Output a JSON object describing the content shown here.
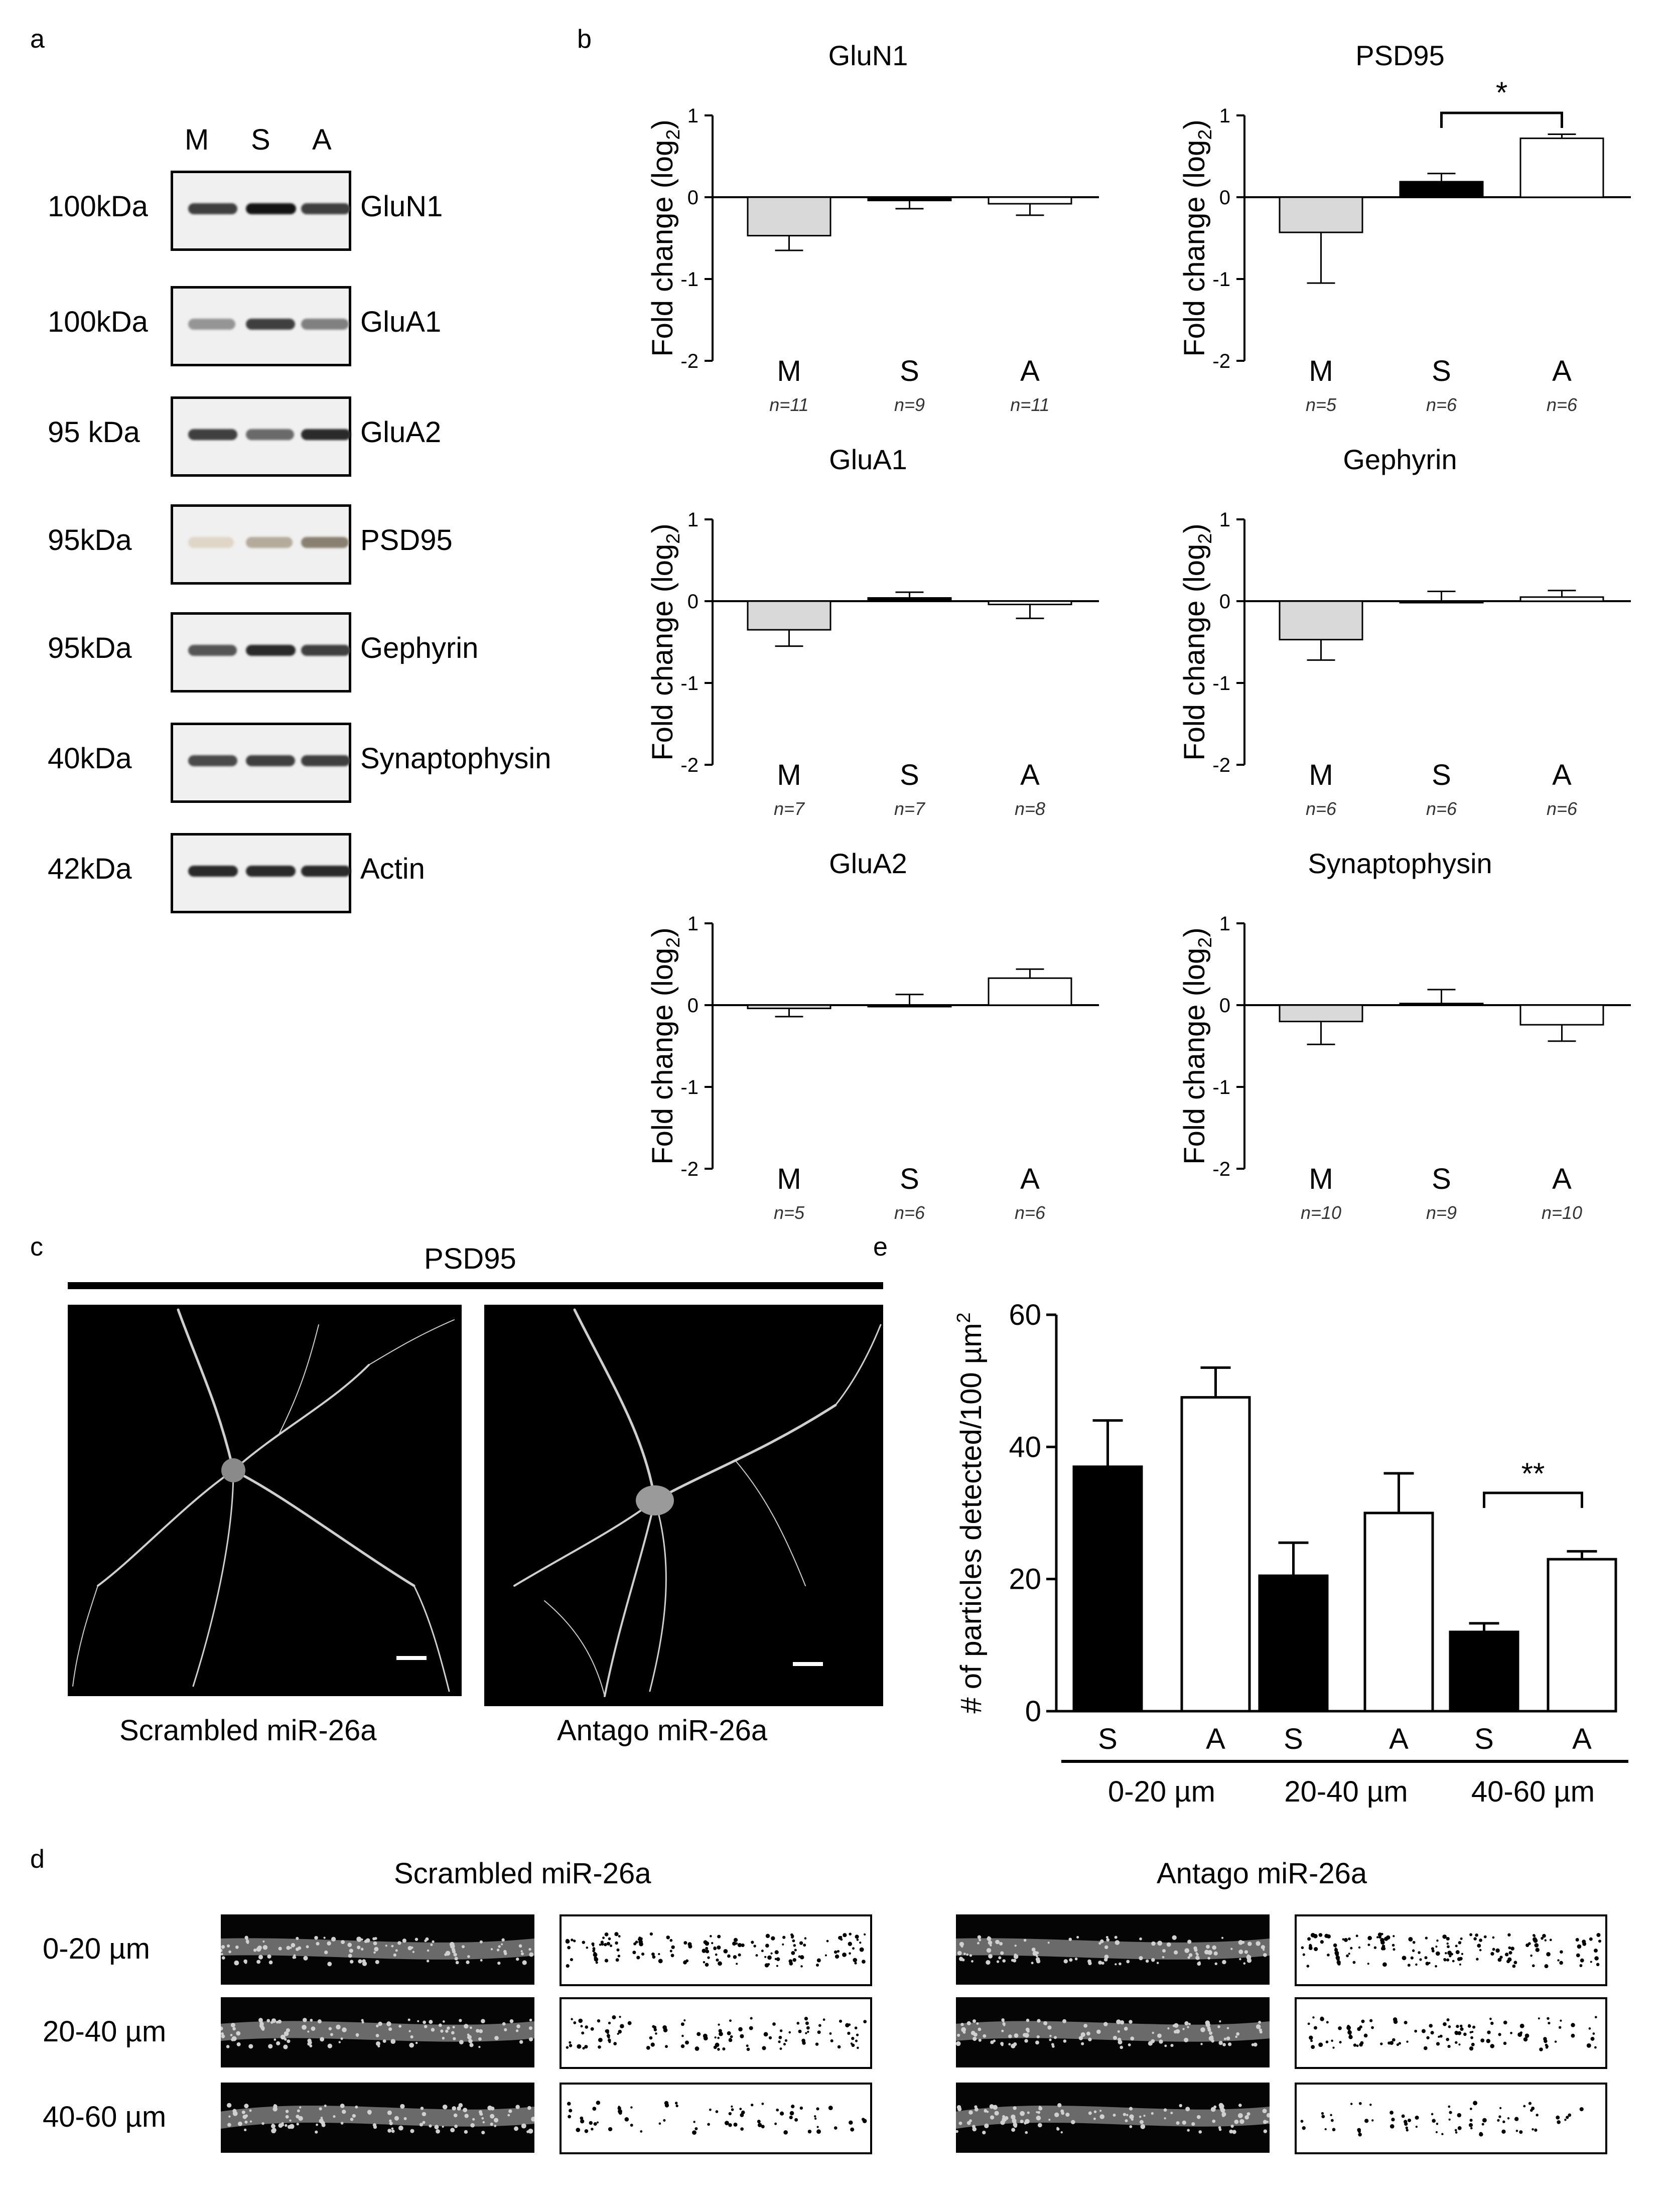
{
  "panels": {
    "a": "a",
    "b": "b",
    "c": "c",
    "d": "d",
    "e": "e"
  },
  "panel_a": {
    "lanes": [
      "M",
      "S",
      "A"
    ],
    "blots": [
      {
        "mw": "100kDa",
        "protein": "GluN1",
        "bands": [
          0.8,
          1.0,
          0.8
        ]
      },
      {
        "mw": "100kDa",
        "protein": "GluA1",
        "bands": [
          0.4,
          0.8,
          0.5
        ]
      },
      {
        "mw": "95 kDa",
        "protein": "GluA2",
        "bands": [
          0.8,
          0.6,
          0.9
        ]
      },
      {
        "mw": "95kDa",
        "protein": "PSD95",
        "bands": [
          0.05,
          0.25,
          0.45
        ]
      },
      {
        "mw": "95kDa",
        "protein": "Gephyrin",
        "bands": [
          0.7,
          0.9,
          0.8
        ]
      },
      {
        "mw": "40kDa",
        "protein": "Synaptophysin",
        "bands": [
          0.75,
          0.8,
          0.8
        ]
      },
      {
        "mw": "42kDa",
        "protein": "Actin",
        "bands": [
          0.9,
          0.9,
          0.9
        ]
      }
    ]
  },
  "panel_b": {
    "ylabel": "Fold change (log",
    "ylabel_sub": "2",
    "ylabel_end": ")",
    "yticks": [
      "1",
      "0",
      "-1",
      "-2"
    ],
    "categories": [
      "M",
      "S",
      "A"
    ]
  },
  "chart_data": [
    {
      "type": "bar",
      "title": "GluN1",
      "categories": [
        "M",
        "S",
        "A"
      ],
      "values": [
        -0.47,
        -0.04,
        -0.08
      ],
      "errors": [
        0.18,
        0.1,
        0.14
      ],
      "n": [
        "n=11",
        "n=9",
        "n=11"
      ],
      "ylim": [
        -2,
        1
      ]
    },
    {
      "type": "bar",
      "title": "PSD95",
      "categories": [
        "M",
        "S",
        "A"
      ],
      "values": [
        -0.43,
        0.19,
        0.72
      ],
      "errors": [
        0.62,
        0.1,
        0.05
      ],
      "n": [
        "n=5",
        "n=6",
        "n=6"
      ],
      "ylim": [
        -2,
        1
      ],
      "significance": {
        "between": [
          "S",
          "A"
        ],
        "label": "*"
      }
    },
    {
      "type": "bar",
      "title": "GluA1",
      "categories": [
        "M",
        "S",
        "A"
      ],
      "values": [
        -0.35,
        0.04,
        -0.04
      ],
      "errors": [
        0.2,
        0.07,
        0.17
      ],
      "n": [
        "n=7",
        "n=7",
        "n=8"
      ],
      "ylim": [
        -2,
        1
      ]
    },
    {
      "type": "bar",
      "title": "Gephyrin",
      "categories": [
        "M",
        "S",
        "A"
      ],
      "values": [
        -0.47,
        0.0,
        0.05
      ],
      "errors": [
        0.25,
        0.12,
        0.08
      ],
      "n": [
        "n=6",
        "n=6",
        "n=6"
      ],
      "ylim": [
        -2,
        1
      ]
    },
    {
      "type": "bar",
      "title": "GluA2",
      "categories": [
        "M",
        "S",
        "A"
      ],
      "values": [
        -0.04,
        0.0,
        0.33
      ],
      "errors": [
        0.1,
        0.13,
        0.11
      ],
      "n": [
        "n=5",
        "n=6",
        "n=6"
      ],
      "ylim": [
        -2,
        1
      ]
    },
    {
      "type": "bar",
      "title": "Synaptophysin",
      "categories": [
        "M",
        "S",
        "A"
      ],
      "values": [
        -0.2,
        0.02,
        -0.24
      ],
      "errors": [
        0.28,
        0.17,
        0.2
      ],
      "n": [
        "n=10",
        "n=9",
        "n=10"
      ],
      "ylim": [
        -2,
        1
      ]
    },
    {
      "type": "bar",
      "ylabel": "# of particles detected/100 µm",
      "ylabel_sup": "2",
      "ylim": [
        0,
        60
      ],
      "yticks": [
        "0",
        "20",
        "40",
        "60"
      ],
      "groups": [
        "0-20 µm",
        "20-40 µm",
        "40-60 µm"
      ],
      "categories": [
        "S",
        "A",
        "S",
        "A",
        "S",
        "A"
      ],
      "values": [
        37,
        47.5,
        20.5,
        30,
        12,
        23
      ],
      "errors": [
        7,
        4.5,
        5,
        6,
        1.3,
        1.2
      ],
      "significance": {
        "group": "40-60 µm",
        "label": "**"
      }
    }
  ],
  "panel_c": {
    "title": "PSD95",
    "left_caption": "Scrambled miR-26a",
    "right_caption": "Antago miR-26a"
  },
  "panel_d": {
    "left_title": "Scrambled miR-26a",
    "right_title": "Antago miR-26a",
    "rows": [
      "0-20 µm",
      "20-40 µm",
      "40-60 µm"
    ]
  }
}
